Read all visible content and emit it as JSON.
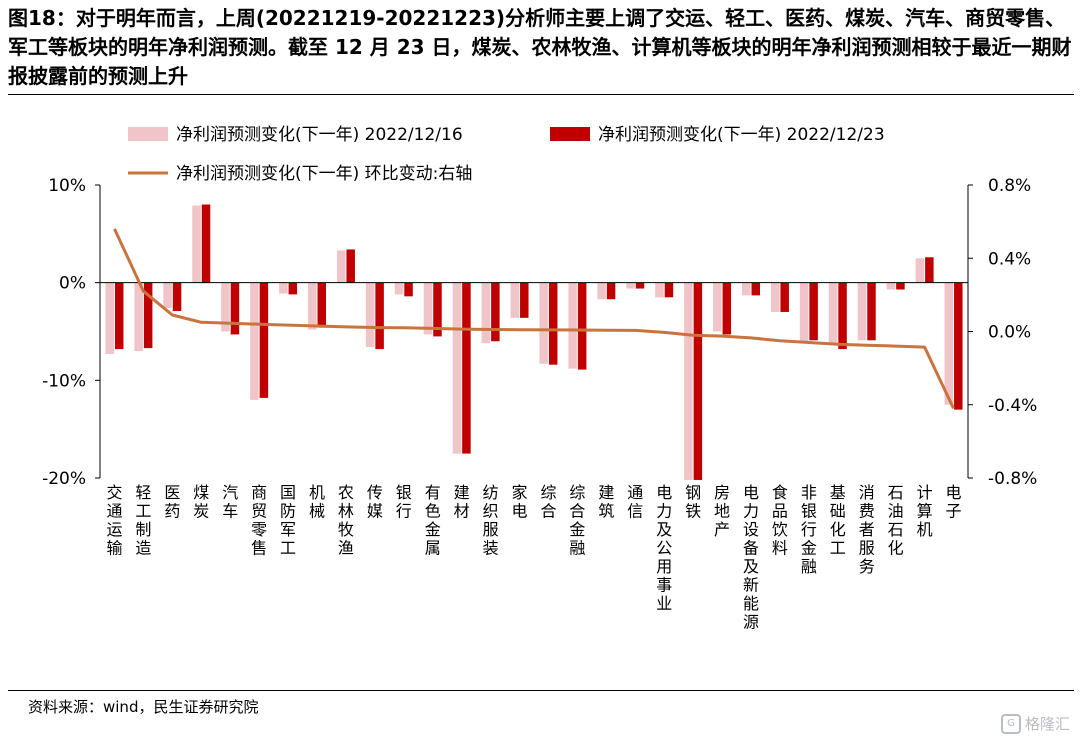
{
  "title": "图18：对于明年而言，上周(20221219-20221223)分析师主要上调了交运、轻工、医药、煤炭、汽车、商贸零售、军工等板块的明年净利润预测。截至 12 月 23 日，煤炭、农林牧渔、计算机等板块的明年净利润预测相较于最近一期财报披露前的预测上升",
  "source": "资料来源：wind，民生证券研究院",
  "watermark": "格隆汇",
  "colors": {
    "series1": "#f0c4c8",
    "series2": "#c00000",
    "line": "#c8743c"
  },
  "chart_data": {
    "type": "bar+line",
    "categories": [
      "交通运输",
      "轻工制造",
      "医药",
      "煤炭",
      "汽车",
      "商贸零售",
      "国防军工",
      "机械",
      "农林牧渔",
      "传媒",
      "银行",
      "有色金属",
      "建材",
      "纺织服装",
      "家电",
      "综合",
      "综合金融",
      "建筑",
      "通信",
      "电力及公用事业",
      "钢铁",
      "房地产",
      "电力设备及新能源",
      "食品饮料",
      "非银行金融",
      "基础化工",
      "消费者服务",
      "石油石化",
      "计算机",
      "电子"
    ],
    "series": [
      {
        "name": "净利润预测变化(下一年) 2022/12/16",
        "axis": "left",
        "values": [
          -7.3,
          -7.0,
          -2.6,
          7.9,
          -5.0,
          -12.0,
          -1.1,
          -4.8,
          3.3,
          -6.6,
          -1.2,
          -5.3,
          -17.5,
          -6.2,
          -3.6,
          -8.3,
          -8.8,
          -1.7,
          -0.6,
          -1.5,
          -20.2,
          -5.0,
          -1.3,
          -3.0,
          -6.1,
          -6.4,
          -5.9,
          -0.7,
          2.5,
          -12.5
        ]
      },
      {
        "name": "净利润预测变化(下一年) 2022/12/23",
        "axis": "left",
        "values": [
          -6.8,
          -6.7,
          -2.9,
          8.0,
          -5.3,
          -11.8,
          -1.2,
          -4.6,
          3.4,
          -6.8,
          -1.4,
          -5.5,
          -17.5,
          -6.0,
          -3.6,
          -8.4,
          -8.9,
          -1.7,
          -0.6,
          -1.5,
          -20.2,
          -5.3,
          -1.3,
          -3.0,
          -5.9,
          -6.8,
          -5.9,
          -0.7,
          2.6,
          -13.0
        ]
      },
      {
        "name": "净利润预测变化(下一年) 环比变动:右轴",
        "axis": "right",
        "type": "line",
        "values": [
          0.56,
          0.22,
          0.09,
          0.05,
          0.045,
          0.04,
          0.035,
          0.03,
          0.025,
          0.022,
          0.02,
          0.017,
          0.013,
          0.011,
          0.01,
          0.009,
          0.008,
          0.007,
          0.006,
          -0.005,
          -0.02,
          -0.025,
          -0.035,
          -0.05,
          -0.06,
          -0.07,
          -0.075,
          -0.08,
          -0.085,
          -0.42
        ]
      }
    ],
    "left_axis": {
      "ylim": [
        -20,
        10
      ],
      "ticks": [
        "10%",
        "0%",
        "-10%",
        "-20%"
      ],
      "tick_values": [
        10,
        0,
        -10,
        -20
      ]
    },
    "right_axis": {
      "ylim": [
        -0.8,
        0.8
      ],
      "ticks": [
        "0.8%",
        "0.4%",
        "0.0%",
        "-0.4%",
        "-0.8%"
      ],
      "tick_values": [
        0.8,
        0.4,
        0,
        -0.4,
        -0.8
      ]
    },
    "legend": [
      {
        "label": "净利润预测变化(下一年) 2022/12/16",
        "kind": "bar1"
      },
      {
        "label": "净利润预测变化(下一年) 2022/12/23",
        "kind": "bar2"
      },
      {
        "label": "净利润预测变化(下一年) 环比变动:右轴",
        "kind": "line"
      }
    ],
    "grid": false,
    "legend_position": "top-left"
  }
}
